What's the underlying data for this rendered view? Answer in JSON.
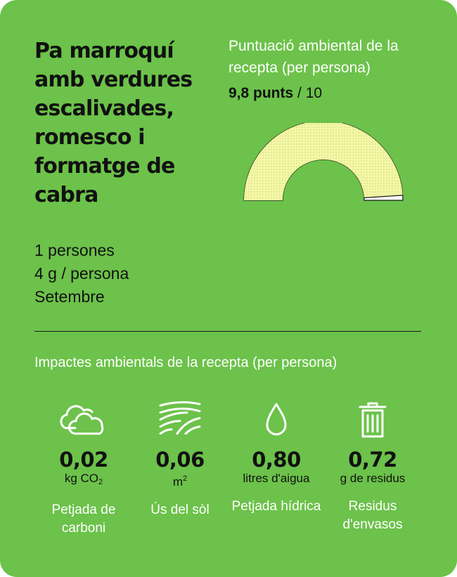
{
  "recipe": {
    "title": "Pa marroquí amb verdures escalivades, romesco i formatge de cabra"
  },
  "score": {
    "label": "Puntuació ambiental de la recepta (per persona)",
    "value": 9.8,
    "value_text": "9,8 punts",
    "separator": " / ",
    "max_text": "10"
  },
  "details": {
    "servings": "1 persones",
    "weight": "4 g / persona",
    "month": "Setembre"
  },
  "impacts": {
    "title": "Impactes ambientals de la recepta (per persona)",
    "items": [
      {
        "icon": "cloud-icon",
        "value": "0,02",
        "unit_main": "kg CO",
        "unit_sub": "2",
        "label": "Petjada de carboni"
      },
      {
        "icon": "field-icon",
        "value": "0,06",
        "unit_main": "m",
        "unit_sup": "2",
        "label": "Ús del sòl"
      },
      {
        "icon": "water-drop-icon",
        "value": "0,80",
        "unit_main": "litres d'aigua",
        "label": "Petjada hídrica"
      },
      {
        "icon": "trash-bin-icon",
        "value": "0,72",
        "unit_main": "g de residus",
        "label": "Residus d'envasos"
      }
    ]
  },
  "colors": {
    "background": "#6cc24a",
    "gauge_fill": "#f4f7a8",
    "gauge_track": "#ffffff",
    "text_dark": "#111111",
    "text_light": "#ffffff"
  }
}
